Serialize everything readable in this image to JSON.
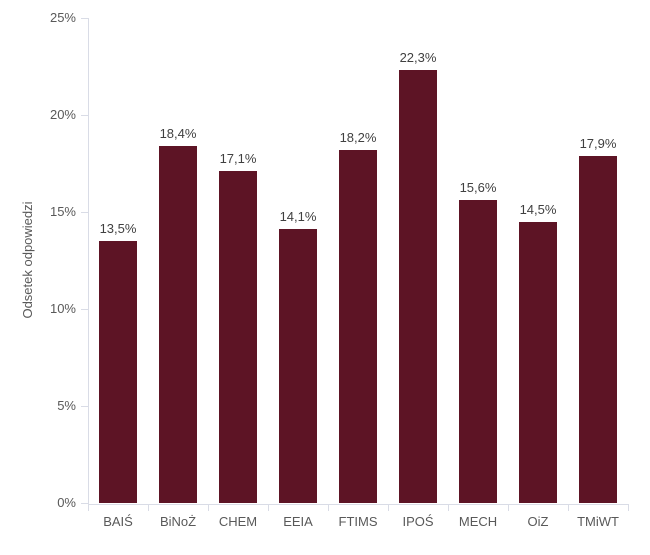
{
  "chart_data": {
    "type": "bar",
    "title": "",
    "xlabel": "",
    "ylabel": "Odsetek odpowiedzi",
    "categories": [
      "BAIŚ",
      "BiNoŻ",
      "CHEM",
      "EEIA",
      "FTIMS",
      "IPOŚ",
      "MECH",
      "OiZ",
      "TMiWT"
    ],
    "values": [
      13.5,
      18.4,
      17.1,
      14.1,
      18.2,
      22.3,
      15.6,
      14.5,
      17.9
    ],
    "value_labels": [
      "13,5%",
      "18,4%",
      "17,1%",
      "14,1%",
      "18,2%",
      "22,3%",
      "15,6%",
      "14,5%",
      "17,9%"
    ],
    "ylim": [
      0,
      25
    ],
    "yticks": [
      0,
      5,
      10,
      15,
      20,
      25
    ],
    "ytick_labels": [
      "0%",
      "5%",
      "10%",
      "15%",
      "20%",
      "25%"
    ],
    "grid": false,
    "legend": false,
    "colors": {
      "bar": "#5d1425",
      "axis_line": "#d9dce6",
      "tick_label": "#595959",
      "value_label": "#404040",
      "background": "#ffffff"
    }
  }
}
